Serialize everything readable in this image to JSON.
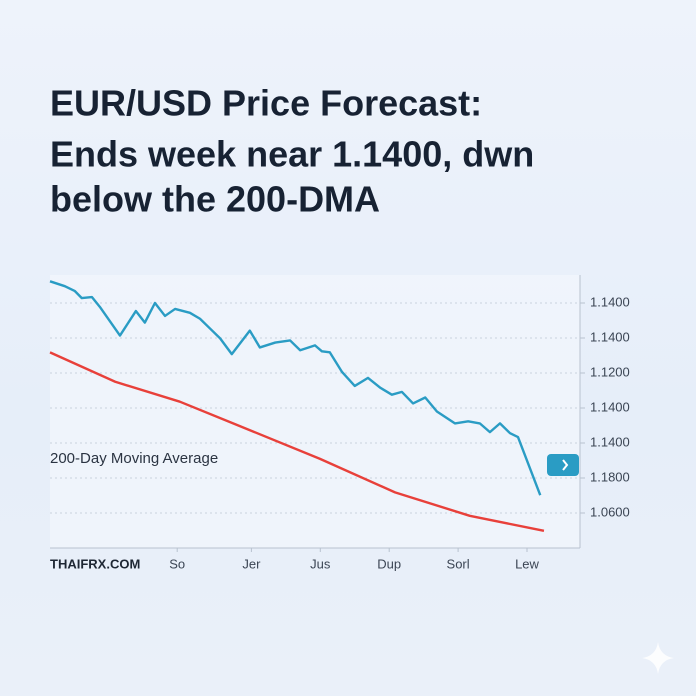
{
  "chart_data": {
    "type": "line",
    "title": [
      "EUR/USD Price Forecast:",
      "Ends week near 1.1400, dwn",
      "below the 200-DMA"
    ],
    "source": "THAIFRX.COM",
    "annotation": "200-Day Moving Average",
    "xlim": [
      0,
      100
    ],
    "xticks": [
      {
        "value": 24,
        "label": "So"
      },
      {
        "value": 38,
        "label": "Jer"
      },
      {
        "value": 51,
        "label": "Jus"
      },
      {
        "value": 64,
        "label": "Dup"
      },
      {
        "value": 77,
        "label": "Sorl"
      },
      {
        "value": 90,
        "label": "Lew"
      }
    ],
    "ylim": [
      0,
      7.8
    ],
    "yticks": [
      {
        "value": 7,
        "label": "1.1400"
      },
      {
        "value": 6,
        "label": "1.1400"
      },
      {
        "value": 5,
        "label": "1.1200"
      },
      {
        "value": 4,
        "label": "1.1400"
      },
      {
        "value": 3,
        "label": "1.1400"
      },
      {
        "value": 2,
        "label": "1.1800"
      },
      {
        "value": 1,
        "label": "1.0600"
      }
    ],
    "grid": true,
    "series": [
      {
        "color": "#2a9cc4",
        "x": [
          0,
          2.8,
          4.7,
          6,
          7.9,
          9.4,
          13.2,
          16.2,
          17.9,
          19.8,
          21.7,
          23.6,
          26.4,
          28.3,
          30.2,
          32.1,
          34.3,
          37.7,
          39.6,
          42.5,
          45.3,
          47.2,
          50,
          51.3,
          52.8,
          55.1,
          57.5,
          60,
          62.3,
          64.5,
          66.4,
          68.5,
          70.8,
          73,
          76.4,
          78.9,
          81.1,
          83,
          84.9,
          86.8,
          88.3,
          92.5
        ],
        "values": [
          7.62,
          7.48,
          7.34,
          7.14,
          7.17,
          6.89,
          6.07,
          6.77,
          6.44,
          7.0,
          6.63,
          6.83,
          6.72,
          6.55,
          6.27,
          5.99,
          5.54,
          6.21,
          5.73,
          5.87,
          5.93,
          5.65,
          5.79,
          5.62,
          5.59,
          5.03,
          4.63,
          4.86,
          4.58,
          4.38,
          4.46,
          4.13,
          4.3,
          3.9,
          3.56,
          3.62,
          3.56,
          3.31,
          3.56,
          3.28,
          3.17,
          1.51
        ]
      },
      {
        "name": "200-Day Moving Average",
        "color": "#e8403a",
        "x": [
          0,
          12.3,
          24.5,
          34.9,
          50.9,
          65.1,
          79.2,
          93.2
        ],
        "values": [
          5.59,
          4.75,
          4.18,
          3.54,
          2.55,
          1.59,
          0.92,
          0.49
        ]
      }
    ]
  }
}
